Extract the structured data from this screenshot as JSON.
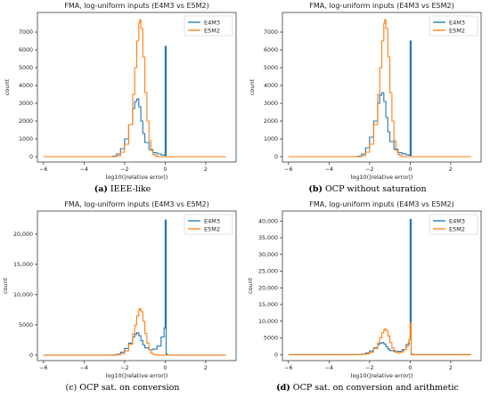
{
  "chart_data": [
    {
      "type": "line",
      "title": "FMA, log-uniform inputs (E4M3 vs E5M2)",
      "xlabel": "log10(|relative error|)",
      "ylabel": "count",
      "xlim": [
        -6.3,
        3.5
      ],
      "ylim": [
        -300,
        8100
      ],
      "xticks": [
        -6,
        -4,
        -2,
        0,
        2
      ],
      "xtick_labels": [
        "−6",
        "−4",
        "−2",
        "0",
        "2"
      ],
      "yticks": [
        0,
        1000,
        2000,
        3000,
        4000,
        5000,
        6000,
        7000
      ],
      "ytick_labels": [
        "0",
        "1000",
        "2000",
        "3000",
        "4000",
        "5000",
        "6000",
        "7000"
      ],
      "legend_loc": "top-right",
      "legend": [
        "E4M3",
        "E5M2"
      ],
      "series": [
        {
          "name": "E4M3",
          "x": [
            -6,
            -2.6,
            -2.4,
            -2.2,
            -2.0,
            -1.8,
            -1.6,
            -1.5,
            -1.4,
            -1.3,
            -1.2,
            -1.1,
            -1.0,
            -0.8,
            -0.6,
            -0.4,
            -0.2,
            -0.05,
            0.0,
            0.05,
            0.1,
            0.3,
            3.0
          ],
          "y": [
            0,
            30,
            150,
            450,
            1000,
            1800,
            2700,
            3100,
            3250,
            2800,
            2000,
            1300,
            800,
            400,
            220,
            150,
            100,
            80,
            6200,
            0,
            0,
            0,
            0
          ]
        },
        {
          "name": "E5M2",
          "x": [
            -6,
            -2.4,
            -2.2,
            -2.0,
            -1.8,
            -1.6,
            -1.5,
            -1.4,
            -1.3,
            -1.25,
            -1.2,
            -1.1,
            -1.0,
            -0.9,
            -0.8,
            -0.7,
            -0.6,
            -0.5,
            -0.4,
            -0.3,
            -0.2,
            3.0
          ],
          "y": [
            0,
            60,
            250,
            700,
            1800,
            3500,
            5000,
            6500,
            7500,
            7700,
            7200,
            5600,
            3600,
            2000,
            900,
            350,
            120,
            40,
            10,
            0,
            0,
            0
          ]
        }
      ],
      "caption_label": "(a)",
      "caption_text": "IEEE-like"
    },
    {
      "type": "line",
      "title": "FMA, log-uniform inputs (E4M3 vs E5M2)",
      "xlabel": "log10(|relative error|)",
      "ylabel": "count",
      "xlim": [
        -6.3,
        3.5
      ],
      "ylim": [
        -300,
        8100
      ],
      "xticks": [
        -6,
        -4,
        -2,
        0,
        2
      ],
      "xtick_labels": [
        "−6",
        "−4",
        "−2",
        "0",
        "2"
      ],
      "yticks": [
        0,
        1000,
        2000,
        3000,
        4000,
        5000,
        6000,
        7000
      ],
      "ytick_labels": [
        "0",
        "1000",
        "2000",
        "3000",
        "4000",
        "5000",
        "6000",
        "7000"
      ],
      "legend_loc": "top-right",
      "legend": [
        "E4M3",
        "E5M2"
      ],
      "series": [
        {
          "name": "E4M3",
          "x": [
            -6,
            -2.6,
            -2.4,
            -2.2,
            -2.0,
            -1.8,
            -1.6,
            -1.5,
            -1.4,
            -1.3,
            -1.2,
            -1.1,
            -1.0,
            -0.8,
            -0.6,
            -0.4,
            -0.2,
            -0.05,
            0.0,
            0.05,
            0.1,
            0.3,
            3.0
          ],
          "y": [
            0,
            30,
            150,
            500,
            1100,
            2000,
            3000,
            3450,
            3600,
            3100,
            2200,
            1400,
            850,
            420,
            230,
            160,
            100,
            80,
            6500,
            0,
            0,
            0,
            0
          ]
        },
        {
          "name": "E5M2",
          "x": [
            -6,
            -2.4,
            -2.2,
            -2.0,
            -1.8,
            -1.6,
            -1.5,
            -1.4,
            -1.3,
            -1.25,
            -1.2,
            -1.1,
            -1.0,
            -0.9,
            -0.8,
            -0.7,
            -0.6,
            -0.5,
            -0.4,
            -0.3,
            -0.2,
            3.0
          ],
          "y": [
            0,
            60,
            250,
            700,
            1800,
            3500,
            5000,
            6500,
            7500,
            7700,
            7200,
            5600,
            3600,
            2000,
            900,
            350,
            120,
            40,
            10,
            0,
            0,
            0
          ]
        }
      ],
      "caption_label": "(b)",
      "caption_text": "OCP without saturation"
    },
    {
      "type": "line",
      "title": "FMA, log-uniform inputs (E4M3 vs E5M2)",
      "xlabel": "log10(|relative error|)",
      "ylabel": "count",
      "xlim": [
        -6.3,
        3.5
      ],
      "ylim": [
        -900,
        23800
      ],
      "xticks": [
        -6,
        -4,
        -2,
        0,
        2
      ],
      "xtick_labels": [
        "−6",
        "−4",
        "−2",
        "0",
        "2"
      ],
      "yticks": [
        0,
        5000,
        10000,
        15000,
        20000
      ],
      "ytick_labels": [
        "0",
        "5000",
        "10,000",
        "15,000",
        "20,000"
      ],
      "legend_loc": "top-right",
      "legend": [
        "E4M3",
        "E5M2"
      ],
      "series": [
        {
          "name": "E4M3",
          "x": [
            -6,
            -2.6,
            -2.4,
            -2.2,
            -2.0,
            -1.8,
            -1.6,
            -1.5,
            -1.4,
            -1.3,
            -1.2,
            -1.1,
            -1.0,
            -0.8,
            -0.6,
            -0.4,
            -0.2,
            -0.05,
            0.0,
            0.05,
            0.1,
            0.3,
            3.0
          ],
          "y": [
            0,
            30,
            150,
            500,
            1100,
            2000,
            3000,
            3450,
            3700,
            3200,
            2400,
            1700,
            1200,
            900,
            1000,
            1500,
            3000,
            4500,
            22300,
            200,
            0,
            0,
            0
          ]
        },
        {
          "name": "E5M2",
          "x": [
            -6,
            -2.4,
            -2.2,
            -2.0,
            -1.8,
            -1.6,
            -1.5,
            -1.4,
            -1.3,
            -1.25,
            -1.2,
            -1.1,
            -1.0,
            -0.9,
            -0.8,
            -0.7,
            -0.6,
            -0.5,
            -0.4,
            -0.3,
            -0.2,
            3.0
          ],
          "y": [
            0,
            60,
            250,
            700,
            1800,
            3500,
            5000,
            6500,
            7500,
            7700,
            7200,
            5600,
            3600,
            2000,
            900,
            350,
            120,
            40,
            10,
            0,
            0,
            0
          ]
        }
      ],
      "caption_label": "(c)",
      "caption_text": "OCP sat. on conversion"
    },
    {
      "type": "line",
      "title": "FMA, log-uniform inputs (E4M3 vs E5M2)",
      "xlabel": "log10(|relative error|)",
      "ylabel": "count",
      "xlim": [
        -6.3,
        3.5
      ],
      "ylim": [
        -1800,
        43000
      ],
      "xticks": [
        -6,
        -4,
        -2,
        0,
        2
      ],
      "xtick_labels": [
        "−6",
        "−4",
        "−2",
        "0",
        "2"
      ],
      "yticks": [
        0,
        5000,
        10000,
        15000,
        20000,
        25000,
        30000,
        35000,
        40000
      ],
      "ytick_labels": [
        "0",
        "5000",
        "10,000",
        "15,000",
        "20,000",
        "25,000",
        "30,000",
        "35,000",
        "40,000"
      ],
      "legend_loc": "top-right",
      "legend": [
        "E4M3",
        "E5M2"
      ],
      "series": [
        {
          "name": "E4M3",
          "x": [
            -6,
            -2.6,
            -2.4,
            -2.2,
            -2.0,
            -1.8,
            -1.6,
            -1.5,
            -1.4,
            -1.3,
            -1.2,
            -1.1,
            -1.0,
            -0.8,
            -0.6,
            -0.4,
            -0.2,
            -0.05,
            0.0,
            0.05,
            0.1,
            0.3,
            3.0
          ],
          "y": [
            0,
            30,
            150,
            500,
            1100,
            2000,
            3000,
            3450,
            3600,
            3200,
            2400,
            1700,
            1200,
            900,
            1000,
            1500,
            3000,
            4500,
            40500,
            200,
            0,
            0,
            0
          ]
        },
        {
          "name": "E5M2",
          "x": [
            -6,
            -2.4,
            -2.2,
            -2.0,
            -1.8,
            -1.6,
            -1.5,
            -1.4,
            -1.3,
            -1.25,
            -1.2,
            -1.1,
            -1.0,
            -0.9,
            -0.8,
            -0.7,
            -0.6,
            -0.5,
            -0.4,
            -0.3,
            -0.2,
            -0.1,
            -0.05,
            0.0,
            0.05,
            0.1,
            0.3,
            3.0
          ],
          "y": [
            0,
            60,
            250,
            700,
            1800,
            3500,
            5000,
            6500,
            7500,
            7700,
            7200,
            5600,
            3600,
            2000,
            1200,
            700,
            500,
            600,
            900,
            1500,
            2400,
            3500,
            4500,
            9500,
            0,
            0,
            0,
            0
          ]
        }
      ],
      "caption_label": "(d)",
      "caption_text": "OCP sat. on conversion and arithmetic"
    }
  ],
  "colors": {
    "E4M3": "#1f77b4",
    "E5M2": "#ff7f0e"
  }
}
